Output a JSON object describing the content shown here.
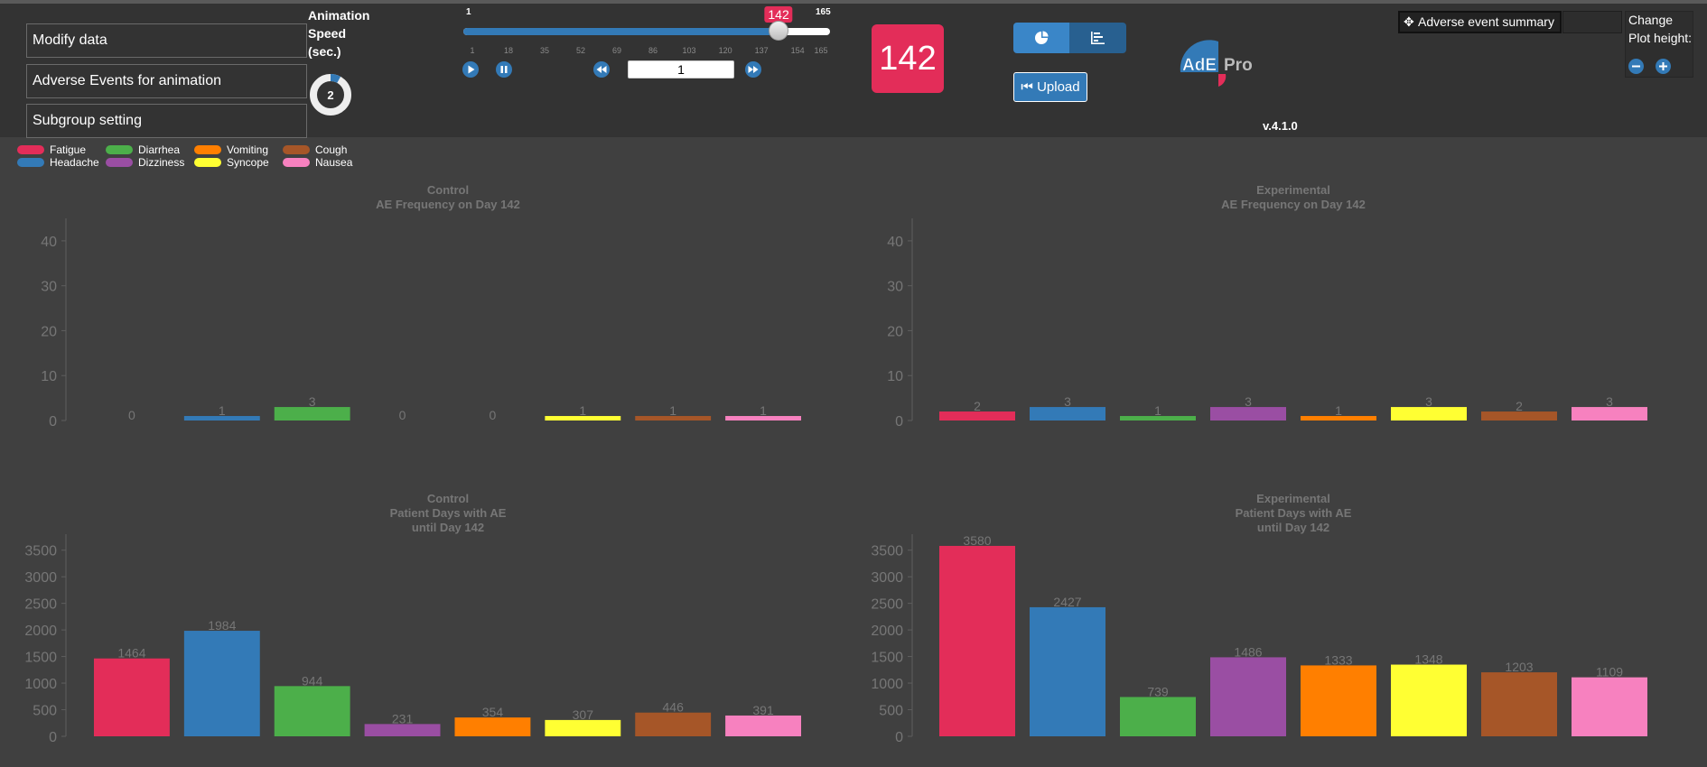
{
  "menu": {
    "modify_data": "Modify data",
    "ae_animation": "Adverse Events for animation",
    "subgroup": "Subgroup setting"
  },
  "animation_speed": {
    "label": "Animation Speed (sec.)",
    "value": "2",
    "fraction": 0.08
  },
  "slider": {
    "min": "1",
    "max": "165",
    "current": 142,
    "ticks": [
      "1",
      "18",
      "35",
      "52",
      "69",
      "86",
      "103",
      "120",
      "137",
      "154",
      "165"
    ]
  },
  "step_input": {
    "value": "1"
  },
  "day_display": "142",
  "upload_label": "Upload",
  "logo_text": {
    "part1": "AdE",
    "part2": "Pro"
  },
  "version": "v.4.1.0",
  "ae_summary_label": "Adverse event summary",
  "plot_height": {
    "label_line1": "Change",
    "label_line2": "Plot height:"
  },
  "legend": [
    {
      "name": "Fatigue",
      "color": "#e32d59"
    },
    {
      "name": "Headache",
      "color": "#337ab7"
    },
    {
      "name": "Diarrhea",
      "color": "#4caf4a"
    },
    {
      "name": "Dizziness",
      "color": "#9a4ea3"
    },
    {
      "name": "Vomiting",
      "color": "#ff7f00"
    },
    {
      "name": "Syncope",
      "color": "#ffff33"
    },
    {
      "name": "Cough",
      "color": "#a65628"
    },
    {
      "name": "Nausea",
      "color": "#f781bf"
    }
  ],
  "colors": {
    "Fatigue": "#e32d59",
    "Headache": "#337ab7",
    "Diarrhea": "#4caf4a",
    "Dizziness": "#9a4ea3",
    "Vomiting": "#ff7f00",
    "Syncope": "#ffff33",
    "Cough": "#a65628",
    "Nausea": "#f781bf"
  },
  "chart_data": [
    {
      "type": "bar",
      "title": "Control",
      "subtitle": "AE Frequency on Day 142",
      "categories": [
        "Fatigue",
        "Headache",
        "Diarrhea",
        "Dizziness",
        "Vomiting",
        "Syncope",
        "Cough",
        "Nausea"
      ],
      "values": [
        0,
        1,
        3,
        0,
        0,
        1,
        1,
        1
      ],
      "ylim": [
        0,
        45
      ],
      "yticks": [
        0,
        10,
        20,
        30,
        40
      ]
    },
    {
      "type": "bar",
      "title": "Experimental",
      "subtitle": "AE Frequency on Day 142",
      "categories": [
        "Fatigue",
        "Headache",
        "Diarrhea",
        "Dizziness",
        "Vomiting",
        "Syncope",
        "Cough",
        "Nausea"
      ],
      "values": [
        2,
        3,
        1,
        3,
        1,
        3,
        2,
        3
      ],
      "ylim": [
        0,
        45
      ],
      "yticks": [
        0,
        10,
        20,
        30,
        40
      ]
    },
    {
      "type": "bar",
      "title": "Control",
      "subtitle": "Patient Days with AE",
      "subtitle2": "until Day 142",
      "categories": [
        "Fatigue",
        "Headache",
        "Diarrhea",
        "Dizziness",
        "Vomiting",
        "Syncope",
        "Cough",
        "Nausea"
      ],
      "values": [
        1464,
        1984,
        944,
        231,
        354,
        307,
        446,
        391
      ],
      "ylim": [
        0,
        3800
      ],
      "yticks": [
        0,
        500,
        1000,
        1500,
        2000,
        2500,
        3000,
        3500
      ]
    },
    {
      "type": "bar",
      "title": "Experimental",
      "subtitle": "Patient Days with AE",
      "subtitle2": "until Day 142",
      "categories": [
        "Fatigue",
        "Headache",
        "Diarrhea",
        "Dizziness",
        "Vomiting",
        "Syncope",
        "Cough",
        "Nausea"
      ],
      "values": [
        3580,
        2427,
        739,
        1486,
        1333,
        1348,
        1203,
        1109
      ],
      "ylim": [
        0,
        3800
      ],
      "yticks": [
        0,
        500,
        1000,
        1500,
        2000,
        2500,
        3000,
        3500
      ]
    }
  ]
}
